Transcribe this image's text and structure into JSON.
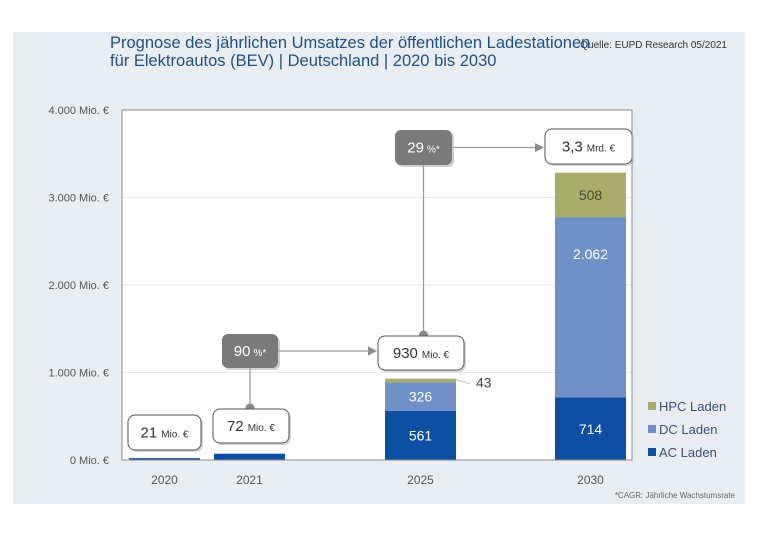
{
  "source": "Quelle: EUPD Research 05/2021",
  "footnote": "*CAGR: Jährliche Wachstumsrate",
  "colors": {
    "ac": "#0b4ea2",
    "dc": "#7090c8",
    "hpc": "#a9ad6c",
    "title": "#1f4e8c",
    "cagr_box": "#7a7a7a"
  },
  "chart_data": {
    "type": "bar",
    "stacked": true,
    "title_line1": "Prognose des jährlichen Umsatzes der öffentlichen Ladestationen",
    "title_line2": "für Elektroautos (BEV) | Deutschland | 2020 bis 2030",
    "categories": [
      "2020",
      "2021",
      "2025",
      "2030"
    ],
    "series": [
      {
        "name": "AC Laden",
        "key": "ac",
        "values": [
          21,
          72,
          561,
          714
        ]
      },
      {
        "name": "DC Laden",
        "key": "dc",
        "values": [
          0,
          0,
          326,
          2062
        ]
      },
      {
        "name": "HPC Laden",
        "key": "hpc",
        "values": [
          0,
          0,
          43,
          508
        ]
      }
    ],
    "segment_labels": {
      "2025": {
        "ac": "561",
        "dc": "326",
        "hpc": "43"
      },
      "2030": {
        "ac": "714",
        "dc": "2.062",
        "hpc": "508"
      }
    },
    "ylim": [
      0,
      4000
    ],
    "yticks": [
      {
        "value": 0,
        "label": "0 Mio. €"
      },
      {
        "value": 1000,
        "label": "1.000 Mio. €"
      },
      {
        "value": 2000,
        "label": "2.000 Mio. €"
      },
      {
        "value": 3000,
        "label": "3.000 Mio. €"
      },
      {
        "value": 4000,
        "label": "4.000 Mio. €"
      }
    ],
    "grid": true,
    "legend": [
      "HPC Laden",
      "DC Laden",
      "AC Laden"
    ],
    "legend_position": "bottom-right",
    "totals": [
      {
        "category": "2020",
        "value": "21",
        "unit": "Mio. €"
      },
      {
        "category": "2021",
        "value": "72",
        "unit": "Mio. €"
      },
      {
        "category": "2025",
        "value": "930",
        "unit": "Mio. €"
      },
      {
        "category": "2030",
        "value": "3,3",
        "unit": "Mrd. €"
      }
    ],
    "cagr": [
      {
        "from": "2021",
        "to": "2025",
        "value": "90",
        "unit": "%*"
      },
      {
        "from": "2025",
        "to": "2030",
        "value": "29",
        "unit": "%*"
      }
    ]
  }
}
